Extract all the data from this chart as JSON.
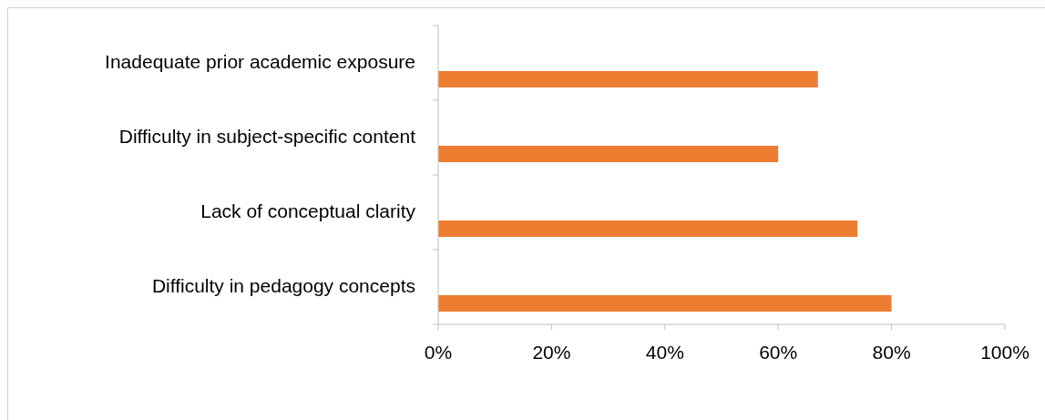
{
  "chart_data": {
    "type": "bar",
    "orientation": "horizontal",
    "categories": [
      "Inadequate prior academic exposure",
      "Difficulty in subject-specific content",
      "Lack of conceptual clarity",
      "Difficulty in pedagogy concepts"
    ],
    "values": [
      67,
      60,
      74,
      80
    ],
    "color": "#ed7d31",
    "xlim": [
      0,
      100
    ],
    "xticks": [
      {
        "value": 0,
        "label": "0%"
      },
      {
        "value": 20,
        "label": "20%"
      },
      {
        "value": 40,
        "label": "40%"
      },
      {
        "value": 60,
        "label": "60%"
      },
      {
        "value": 80,
        "label": "80%"
      },
      {
        "value": 100,
        "label": "100%"
      }
    ],
    "grid": false
  }
}
